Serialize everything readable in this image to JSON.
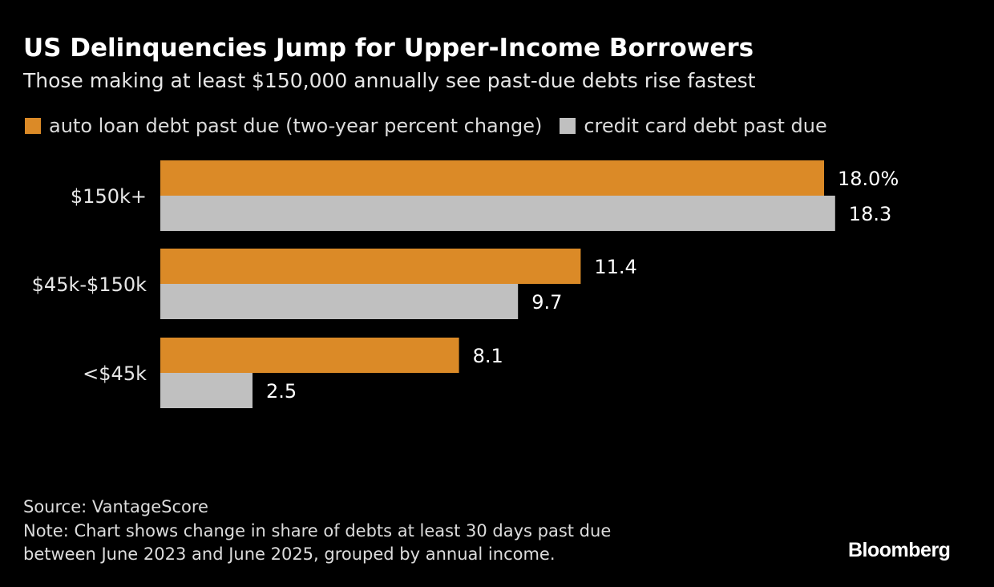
{
  "chart_data": {
    "type": "bar",
    "orientation": "horizontal",
    "title": "US Delinquencies Jump for Upper-Income Borrowers",
    "subtitle": "Those making at least $150,000 annually see past-due debts rise fastest",
    "categories": [
      "$150k+",
      "$45k-$150k",
      "<$45k"
    ],
    "series": [
      {
        "name": "auto loan debt past due (two-year percent change)",
        "values": [
          18.0,
          11.4,
          8.1
        ],
        "labels": [
          "18.0%",
          "11.4",
          "8.1"
        ],
        "color": "#db8a27"
      },
      {
        "name": "credit card debt past due",
        "values": [
          18.3,
          9.7,
          2.5
        ],
        "labels": [
          "18.3",
          "9.7",
          "2.5"
        ],
        "color": "#c0c0c0"
      }
    ],
    "xlim": [
      0,
      18.3
    ],
    "grid": false,
    "legend": "top-left"
  },
  "footer": {
    "source": "Source: VantageScore",
    "note_line1": "Note: Chart shows change in share of debts at least 30 days past due",
    "note_line2": "between June 2023 and June 2025, grouped by annual income."
  },
  "logo": "Bloomberg"
}
